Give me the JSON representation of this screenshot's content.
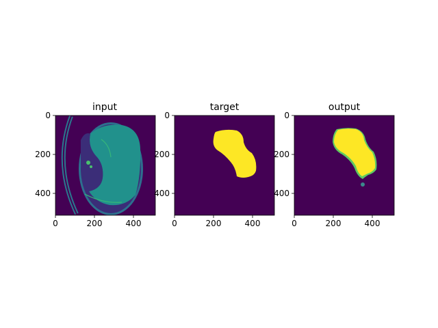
{
  "chart_data": [
    {
      "type": "heatmap",
      "title": "input",
      "xlim": [
        0,
        512
      ],
      "ylim": [
        512,
        0
      ],
      "xticks": [
        0,
        200,
        400
      ],
      "yticks": [
        0,
        200,
        400
      ],
      "colormap": "viridis",
      "colors": {
        "background": "#440154",
        "tissue": "#2a9c87",
        "body": "#21918c",
        "rim": "#4ac16d",
        "edge": "#35b779",
        "dark": "#3b2d78"
      }
    },
    {
      "type": "heatmap",
      "title": "target",
      "xlim": [
        0,
        512
      ],
      "ylim": [
        512,
        0
      ],
      "xticks": [
        0,
        200,
        400
      ],
      "yticks": [
        0,
        200,
        400
      ],
      "colormap": "viridis",
      "colors": {
        "background": "#440154",
        "mask": "#fde725"
      }
    },
    {
      "type": "heatmap",
      "title": "output",
      "xlim": [
        0,
        512
      ],
      "ylim": [
        512,
        0
      ],
      "xticks": [
        0,
        200,
        400
      ],
      "yticks": [
        0,
        200,
        400
      ],
      "colormap": "viridis",
      "colors": {
        "background": "#440154",
        "mask": "#fde725",
        "edge": "#5ec962",
        "spot": "#3b8a8c"
      }
    }
  ]
}
